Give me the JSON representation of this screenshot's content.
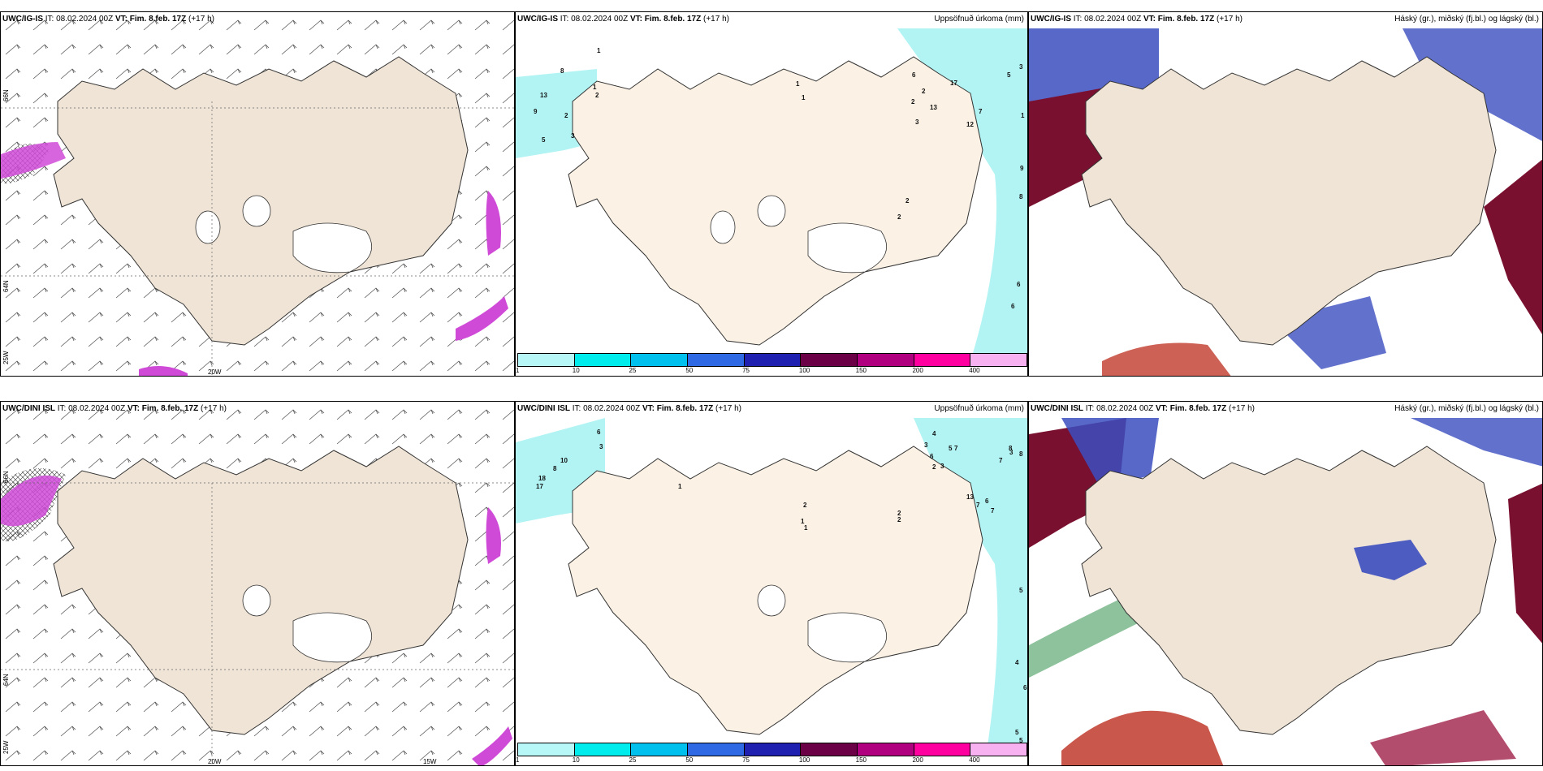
{
  "panels": [
    {
      "model": "UWC/IG-IS",
      "it_label": "IT:",
      "it": "08.02.2024 00Z",
      "vt_label": "VT:",
      "vt": "Fim. 8.feb. 17Z",
      "lead": "(+17 h)",
      "right": ""
    },
    {
      "model": "UWC/IG-IS",
      "it_label": "IT:",
      "it": "08.02.2024 00Z",
      "vt_label": "VT:",
      "vt": "Fim. 8.feb. 17Z",
      "lead": "(+17 h)",
      "right": "Uppsöfnuð úrkoma (mm)"
    },
    {
      "model": "UWC/IG-IS",
      "it_label": "IT:",
      "it": "08.02.2024 00Z",
      "vt_label": "VT:",
      "vt": "Fim. 8.feb. 17Z",
      "lead": "(+17 h)",
      "right": "Háský (gr.), miðský (fj.bl.) og lágský (bl.)"
    },
    {
      "model": "UWC/DINI ISL",
      "it_label": "IT:",
      "it": "08.02.2024 00Z",
      "vt_label": "VT:",
      "vt": "Fim. 8.feb. 17Z",
      "lead": "(+17 h)",
      "right": ""
    },
    {
      "model": "UWC/DINI ISL",
      "it_label": "IT:",
      "it": "08.02.2024 00Z",
      "vt_label": "VT:",
      "vt": "Fim. 8.feb. 17Z",
      "lead": "(+17 h)",
      "right": "Uppsöfnuð úrkoma (mm)"
    },
    {
      "model": "UWC/DINI ISL",
      "it_label": "IT:",
      "it": "08.02.2024 00Z",
      "vt_label": "VT:",
      "vt": "Fim. 8.feb. 17Z",
      "lead": "(+17 h)",
      "right": "Háský (gr.), miðský (fj.bl.) og lágský (bl.)"
    }
  ],
  "lat_labels": [
    "66N",
    "64N",
    "25W"
  ],
  "lon_labels": [
    "20W",
    "15W"
  ],
  "legend": {
    "ticks": [
      "1",
      "10",
      "25",
      "50",
      "75",
      "100",
      "150",
      "200",
      "400"
    ],
    "colors": [
      "#b7f7f7",
      "#00ecec",
      "#00c0ee",
      "#2f6ae4",
      "#2020b0",
      "#6b0047",
      "#b0007f",
      "#ff00a0",
      "#f7b0f0"
    ]
  },
  "precip_labels_top": [
    "1",
    "8",
    "13",
    "9",
    "5",
    "2",
    "3",
    "1",
    "2",
    "1",
    "1",
    "6",
    "2",
    "17",
    "2",
    "3",
    "13",
    "12",
    "7",
    "5",
    "3",
    "1",
    "9",
    "8",
    "6",
    "6",
    "2",
    "2"
  ],
  "precip_labels_bottom": [
    "6",
    "3",
    "10",
    "8",
    "18",
    "17",
    "1",
    "2",
    "1",
    "4",
    "5",
    "3",
    "6",
    "3",
    "7",
    "2",
    "13",
    "7",
    "7",
    "6",
    "8",
    "3",
    "8",
    "7",
    "1",
    "2",
    "2",
    "5",
    "4",
    "6",
    "5",
    "5"
  ],
  "colors": {
    "land": "#efe4d6",
    "land_precip": "#fbf1e4",
    "precip_light": "#b2f4f4",
    "cloud_high": "#2f8f4a",
    "cloud_mid": "#3b4dbf",
    "cloud_low": "#7a1030",
    "wind_magenta": "#d04ad8"
  }
}
